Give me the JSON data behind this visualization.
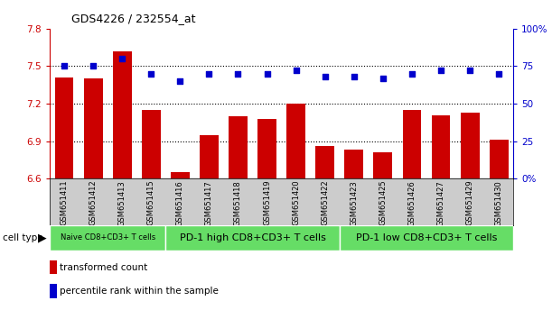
{
  "title": "GDS4226 / 232554_at",
  "samples": [
    "GSM651411",
    "GSM651412",
    "GSM651413",
    "GSM651415",
    "GSM651416",
    "GSM651417",
    "GSM651418",
    "GSM651419",
    "GSM651420",
    "GSM651422",
    "GSM651423",
    "GSM651425",
    "GSM651426",
    "GSM651427",
    "GSM651429",
    "GSM651430"
  ],
  "bar_values": [
    7.41,
    7.4,
    7.62,
    7.15,
    6.65,
    6.95,
    7.1,
    7.08,
    7.2,
    6.86,
    6.83,
    6.81,
    7.15,
    7.11,
    7.13,
    6.91
  ],
  "dot_values": [
    75,
    75,
    80,
    70,
    65,
    70,
    70,
    70,
    72,
    68,
    68,
    67,
    70,
    72,
    72,
    70
  ],
  "ylim_left": [
    6.6,
    7.8
  ],
  "ylim_right": [
    0,
    100
  ],
  "yticks_left": [
    6.6,
    6.9,
    7.2,
    7.5,
    7.8
  ],
  "yticks_right": [
    0,
    25,
    50,
    75,
    100
  ],
  "hlines": [
    6.9,
    7.2,
    7.5
  ],
  "bar_color": "#cc0000",
  "dot_color": "#0000cc",
  "green_color": "#66dd66",
  "gray_color": "#cccccc",
  "cell_type_label": "cell type",
  "legend_bar_label": "transformed count",
  "legend_dot_label": "percentile rank within the sample",
  "tick_color_left": "#cc0000",
  "tick_color_right": "#0000cc",
  "group_labels": [
    "Naive CD8+CD3+ T cells",
    "PD-1 high CD8+CD3+ T cells",
    "PD-1 low CD8+CD3+ T cells"
  ],
  "group_starts": [
    0,
    4,
    10
  ],
  "group_ends": [
    4,
    10,
    16
  ],
  "group_fontsizes": [
    6,
    8,
    8
  ]
}
